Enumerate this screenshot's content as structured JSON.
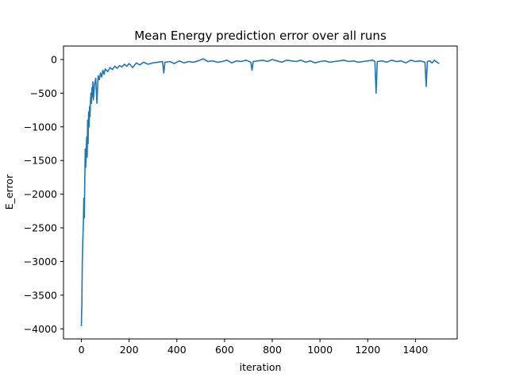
{
  "chart_data": {
    "type": "line",
    "title": "Mean Energy prediction error over all runs",
    "xlabel": "iteration",
    "ylabel": "E_error",
    "xlim": [
      -75,
      1575
    ],
    "ylim": [
      -4150,
      200
    ],
    "xticks": [
      0,
      200,
      400,
      600,
      800,
      1000,
      1200,
      1400
    ],
    "yticks": [
      0,
      -500,
      -1000,
      -1500,
      -2000,
      -2500,
      -3000,
      -3500,
      -4000
    ],
    "grid": false,
    "legend": "none",
    "series": [
      {
        "color": "#1f77b4",
        "x": [
          0,
          2,
          4,
          6,
          8,
          10,
          12,
          14,
          16,
          18,
          20,
          22,
          24,
          26,
          28,
          30,
          32,
          34,
          36,
          38,
          40,
          42,
          44,
          46,
          48,
          50,
          55,
          60,
          65,
          70,
          75,
          80,
          85,
          90,
          95,
          100,
          110,
          120,
          130,
          140,
          150,
          160,
          170,
          180,
          190,
          200,
          215,
          230,
          245,
          260,
          280,
          300,
          320,
          340,
          345,
          350,
          370,
          390,
          410,
          430,
          450,
          470,
          490,
          510,
          530,
          550,
          570,
          590,
          610,
          630,
          650,
          670,
          690,
          710,
          715,
          720,
          740,
          760,
          780,
          800,
          820,
          840,
          860,
          880,
          900,
          920,
          940,
          960,
          980,
          1000,
          1020,
          1040,
          1060,
          1080,
          1100,
          1120,
          1140,
          1160,
          1180,
          1200,
          1220,
          1230,
          1235,
          1240,
          1260,
          1280,
          1300,
          1320,
          1340,
          1360,
          1380,
          1400,
          1420,
          1440,
          1445,
          1450,
          1460,
          1470,
          1480,
          1490,
          1500
        ],
        "y": [
          -3960,
          -3650,
          -3000,
          -2700,
          -2450,
          -2060,
          -2350,
          -1800,
          -1330,
          -1600,
          -1350,
          -1150,
          -1450,
          -900,
          -1250,
          -780,
          -1000,
          -700,
          -850,
          -600,
          -500,
          -650,
          -420,
          -550,
          -330,
          -600,
          -370,
          -280,
          -650,
          -240,
          -300,
          -200,
          -260,
          -160,
          -220,
          -140,
          -180,
          -120,
          -150,
          -100,
          -130,
          -90,
          -110,
          -70,
          -100,
          -60,
          -120,
          -50,
          -80,
          -40,
          -70,
          -50,
          -40,
          -30,
          -200,
          -40,
          -30,
          -60,
          -20,
          -50,
          -30,
          -40,
          -20,
          10,
          -30,
          -20,
          -40,
          -30,
          -10,
          -50,
          -20,
          -30,
          -10,
          -40,
          -160,
          -30,
          -20,
          -10,
          -30,
          0,
          -20,
          -40,
          -10,
          -20,
          -30,
          -10,
          -40,
          -20,
          -50,
          -30,
          -20,
          -40,
          -30,
          -20,
          -10,
          -30,
          -20,
          -40,
          -30,
          -20,
          -10,
          -30,
          -500,
          -30,
          -20,
          -40,
          -10,
          -30,
          -20,
          -50,
          -10,
          -30,
          -20,
          -40,
          -400,
          -30,
          -20,
          -50,
          -10,
          -40,
          -60
        ]
      }
    ]
  }
}
